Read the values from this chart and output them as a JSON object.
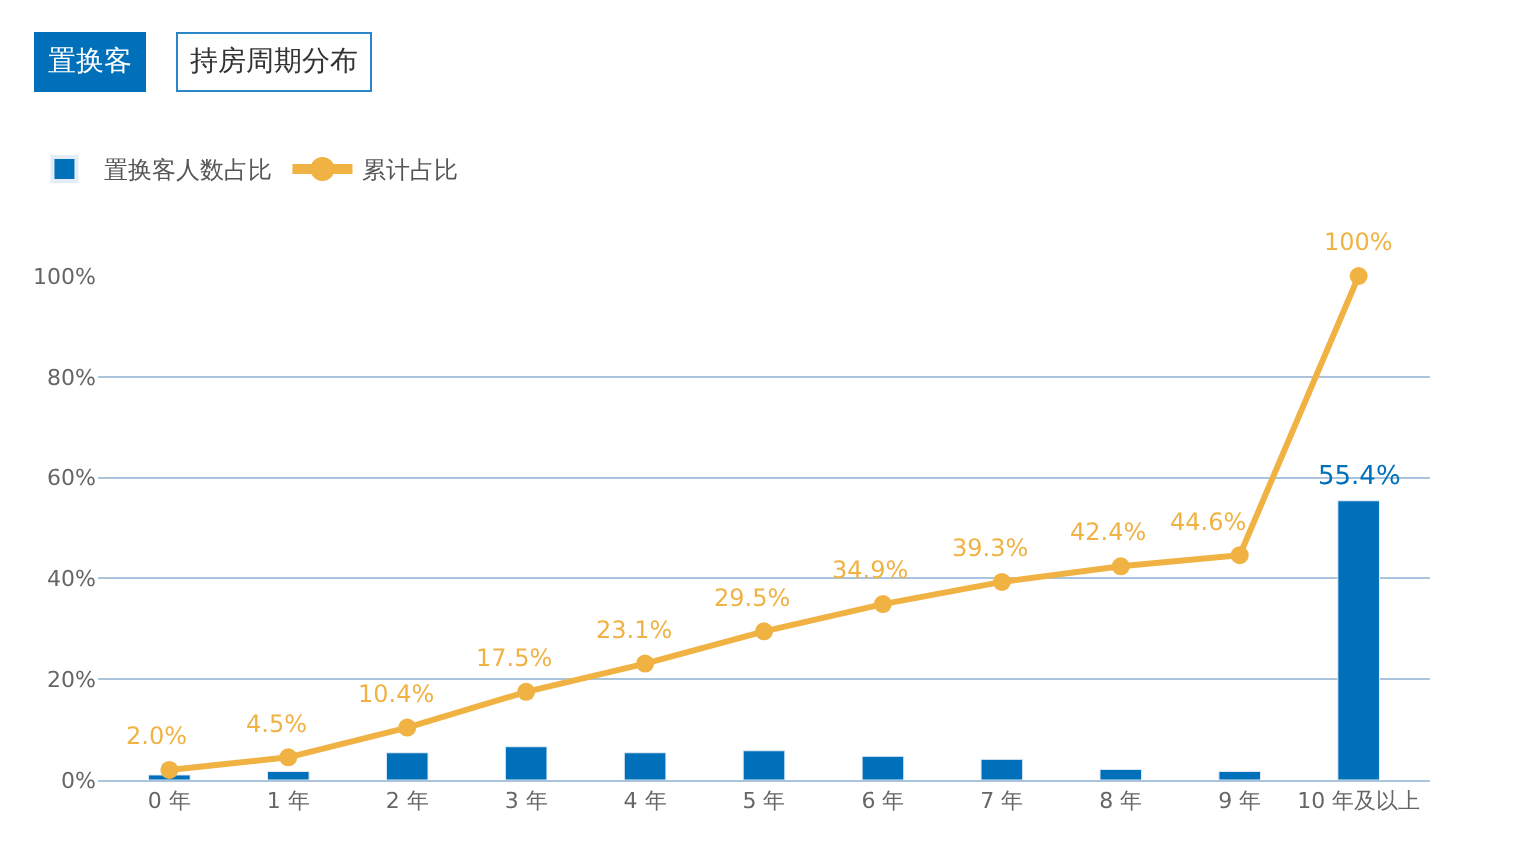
{
  "chart_data": {
    "type": "bar",
    "title": "置换客",
    "subtitle": "持房周期分布",
    "categories": [
      "0 年",
      "1 年",
      "2 年",
      "3 年",
      "4 年",
      "5 年",
      "6 年",
      "7 年",
      "8 年",
      "9 年",
      "10 年及以上"
    ],
    "series": [
      {
        "name": "置换客人数占比",
        "color": "#0070bb",
        "values": [
          1.0,
          1.7,
          5.4,
          6.6,
          5.4,
          5.8,
          4.7,
          4.1,
          2.1,
          1.7,
          55.4
        ],
        "value_labels": [
          null,
          null,
          null,
          null,
          null,
          null,
          null,
          null,
          null,
          null,
          "55.4%"
        ]
      },
      {
        "name": "累计占比",
        "type": "line",
        "color": "#f0b243",
        "values": [
          2.0,
          4.5,
          10.4,
          17.5,
          23.1,
          29.5,
          34.9,
          39.3,
          42.4,
          44.6,
          100
        ],
        "value_labels": [
          "2.0%",
          "4.5%",
          "10.4%",
          "17.5%",
          "23.1%",
          "29.5%",
          "34.9%",
          "39.3%",
          "42.4%",
          "44.6%",
          "100%"
        ]
      }
    ],
    "ylim": [
      0,
      100
    ],
    "yticks": [
      {
        "value": 0,
        "label": "0%"
      },
      {
        "value": 20,
        "label": "20%"
      },
      {
        "value": 40,
        "label": "40%"
      },
      {
        "value": 60,
        "label": "60%"
      },
      {
        "value": 80,
        "label": "80%"
      },
      {
        "value": 100,
        "label": "100%"
      }
    ],
    "grid": "y",
    "legend": "top left",
    "marker": "circle",
    "line_style": "solid"
  }
}
